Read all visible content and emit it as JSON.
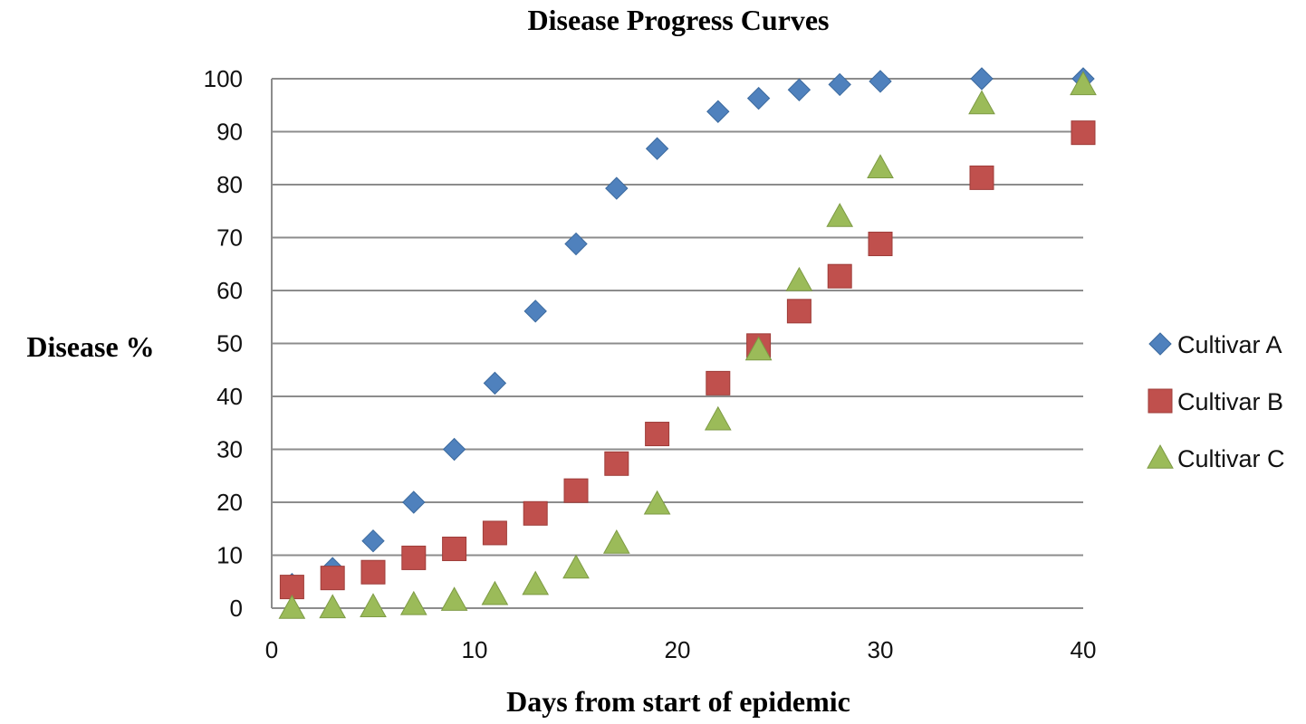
{
  "chart_data": {
    "type": "scatter",
    "title": "Disease Progress Curves",
    "xlabel": "Days from start of epidemic",
    "ylabel": "Disease %",
    "xlim": [
      0,
      40
    ],
    "ylim": [
      0,
      100
    ],
    "xticks": [
      0,
      10,
      20,
      30,
      40
    ],
    "yticks": [
      0,
      10,
      20,
      30,
      40,
      50,
      60,
      70,
      80,
      90,
      100
    ],
    "grid": "horizontal",
    "legend_position": "right",
    "x": [
      1,
      3,
      5,
      7,
      9,
      11,
      13,
      15,
      17,
      19,
      22,
      24,
      26,
      28,
      30,
      35,
      40
    ],
    "series": [
      {
        "name": "Cultivar A",
        "marker": "diamond",
        "color": "#4F81BD",
        "values": [
          4.5,
          7.5,
          12.7,
          20.0,
          30.0,
          42.5,
          56.1,
          68.8,
          79.3,
          86.8,
          93.8,
          96.3,
          97.9,
          98.9,
          99.5,
          100.0,
          100.0
        ]
      },
      {
        "name": "Cultivar B",
        "marker": "square",
        "color": "#C0504D",
        "values": [
          4.0,
          5.7,
          6.8,
          9.5,
          11.2,
          14.2,
          17.9,
          22.2,
          27.3,
          32.9,
          42.5,
          49.6,
          56.1,
          62.7,
          68.8,
          81.3,
          89.8
        ]
      },
      {
        "name": "Cultivar C",
        "marker": "triangle",
        "color": "#9BBB59",
        "values": [
          0.0,
          0.1,
          0.3,
          0.7,
          1.5,
          2.6,
          4.5,
          7.6,
          12.3,
          19.7,
          35.6,
          48.8,
          61.9,
          74.0,
          83.2,
          95.3,
          98.9
        ]
      }
    ]
  }
}
